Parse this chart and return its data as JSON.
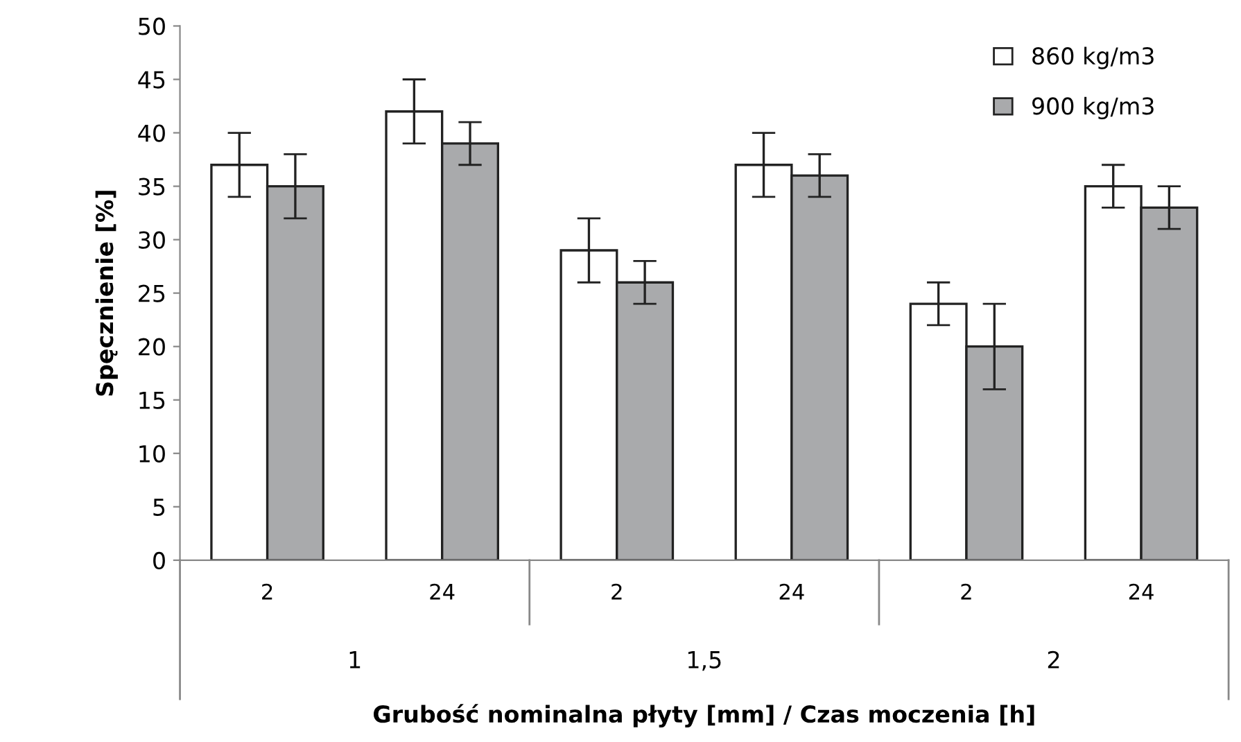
{
  "chart_data": {
    "type": "bar",
    "ylabel": "Spęcznienie [%]",
    "xlabel": "Grubość nominalna płyty [mm] / Czas moczenia [h]",
    "categories": [
      "2",
      "24",
      "2",
      "24",
      "2",
      "24"
    ],
    "annotations": [
      "1",
      "1,5",
      "2"
    ],
    "series": [
      {
        "name": "860 kg/m3",
        "color": "#ffffff",
        "values": [
          37,
          42,
          29,
          37,
          24,
          35
        ],
        "errors": [
          3,
          3,
          3,
          3,
          2,
          2
        ]
      },
      {
        "name": "900 kg/m3",
        "color": "#a9aaac",
        "values": [
          35,
          39,
          26,
          36,
          20,
          33
        ],
        "errors": [
          3,
          2,
          2,
          2,
          4,
          2
        ]
      }
    ],
    "ylim": [
      0,
      50
    ],
    "yticks": [
      0,
      5,
      10,
      15,
      20,
      25,
      30,
      35,
      40,
      45,
      50
    ],
    "grid": false,
    "legend": "top right"
  }
}
